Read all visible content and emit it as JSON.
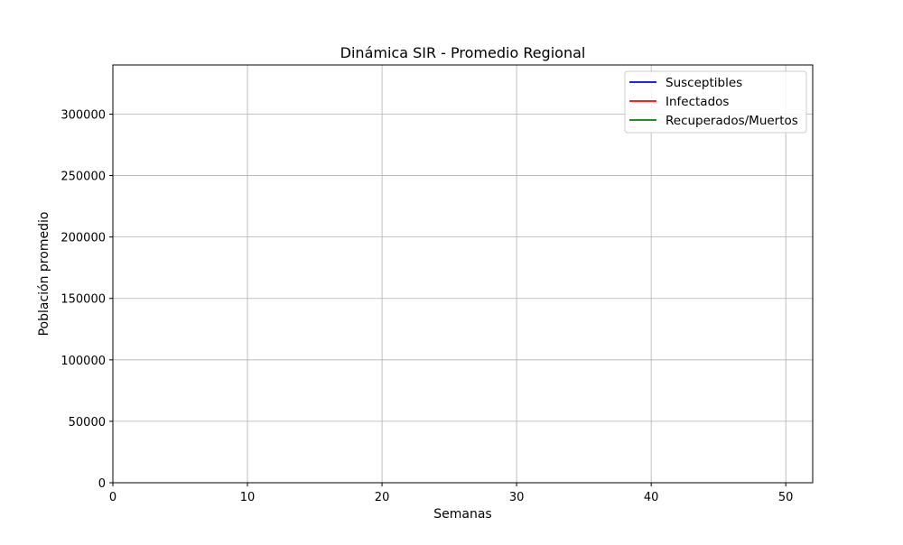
{
  "chart_data": {
    "type": "line",
    "title": "Dinámica SIR - Promedio Regional",
    "xlabel": "Semanas",
    "ylabel": "Población promedio",
    "xlim": [
      0,
      52
    ],
    "ylim": [
      0,
      340000
    ],
    "xticks": [
      0,
      10,
      20,
      30,
      40,
      50
    ],
    "yticks": [
      0,
      50000,
      100000,
      150000,
      200000,
      250000,
      300000
    ],
    "grid": true,
    "legend_position": "top-right",
    "series": [
      {
        "name": "Susceptibles",
        "color": "#0000ff",
        "x": [],
        "values": []
      },
      {
        "name": "Infectados",
        "color": "#ff0000",
        "x": [],
        "values": []
      },
      {
        "name": "Recuperados/Muertos",
        "color": "#008000",
        "x": [],
        "values": []
      }
    ]
  }
}
